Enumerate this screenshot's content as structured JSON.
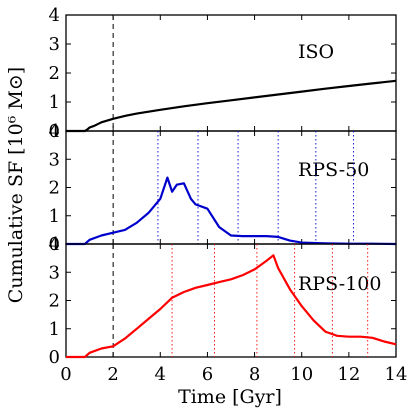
{
  "chart_data": {
    "type": "line",
    "xlabel": "Time [Gyr]",
    "ylabel": "Cumulative SF [10⁶ M⊙]",
    "xlim": [
      0,
      14
    ],
    "x_ticks": [
      "0",
      "2",
      "4",
      "6",
      "8",
      "10",
      "12",
      "14"
    ],
    "grid": false,
    "shared_marker": {
      "x": 2,
      "color": "#000000",
      "style": "dashed"
    },
    "panels": [
      {
        "label": "ISO",
        "ylim": [
          0,
          4
        ],
        "y_ticks": [
          "0",
          "1",
          "2",
          "3",
          "4"
        ],
        "series": {
          "color": "#000000",
          "x": [
            0,
            0.8,
            0.9,
            1.0,
            1.2,
            1.5,
            2.0,
            2.5,
            3.0,
            4.0,
            5.0,
            6.0,
            7.0,
            8.0,
            9.0,
            10.0,
            11.0,
            12.0,
            13.0,
            14.0
          ],
          "y": [
            0,
            0,
            0.05,
            0.12,
            0.18,
            0.3,
            0.42,
            0.52,
            0.6,
            0.73,
            0.85,
            0.96,
            1.06,
            1.16,
            1.26,
            1.36,
            1.46,
            1.55,
            1.64,
            1.73
          ]
        },
        "vlines": []
      },
      {
        "label": "RPS-50",
        "ylim": [
          0,
          4
        ],
        "y_ticks": [
          "0",
          "1",
          "2",
          "3",
          "4"
        ],
        "series": {
          "color": "#0000cc",
          "x": [
            0,
            0.8,
            1.0,
            1.5,
            2.0,
            2.5,
            3.0,
            3.5,
            4.0,
            4.3,
            4.5,
            4.7,
            5.0,
            5.3,
            5.5,
            6.0,
            6.5,
            7.0,
            7.5,
            8.0,
            8.5,
            9.0,
            9.5,
            10.0,
            11.0,
            12.0,
            13.0,
            14.0
          ],
          "y": [
            0,
            0,
            0.15,
            0.3,
            0.4,
            0.5,
            0.75,
            1.1,
            1.6,
            2.35,
            1.85,
            2.1,
            2.15,
            1.6,
            1.4,
            1.25,
            0.6,
            0.3,
            0.28,
            0.28,
            0.28,
            0.25,
            0.12,
            0.05,
            0.02,
            0.01,
            0.01,
            0.0
          ]
        },
        "vlines": [
          3.9,
          5.6,
          7.3,
          9.0,
          10.6,
          12.2
        ]
      },
      {
        "label": "RPS-100",
        "ylim": [
          0,
          4
        ],
        "y_ticks": [
          "0",
          "1",
          "2",
          "3",
          "4"
        ],
        "series": {
          "color": "#ff0000",
          "x": [
            0,
            0.8,
            1.0,
            1.5,
            2.0,
            2.5,
            3.0,
            3.5,
            4.0,
            4.5,
            5.0,
            5.5,
            6.0,
            6.5,
            7.0,
            7.5,
            8.0,
            8.5,
            8.8,
            9.0,
            9.5,
            10.0,
            10.5,
            11.0,
            11.5,
            12.0,
            12.5,
            13.0,
            13.5,
            14.0
          ],
          "y": [
            0,
            0,
            0.15,
            0.3,
            0.38,
            0.65,
            1.0,
            1.35,
            1.7,
            2.1,
            2.3,
            2.45,
            2.55,
            2.65,
            2.75,
            2.9,
            3.1,
            3.4,
            3.6,
            3.15,
            2.4,
            1.8,
            1.3,
            0.9,
            0.75,
            0.72,
            0.72,
            0.68,
            0.55,
            0.45
          ]
        },
        "vlines": [
          4.5,
          6.3,
          8.1,
          9.7,
          11.3,
          12.8
        ]
      }
    ]
  }
}
